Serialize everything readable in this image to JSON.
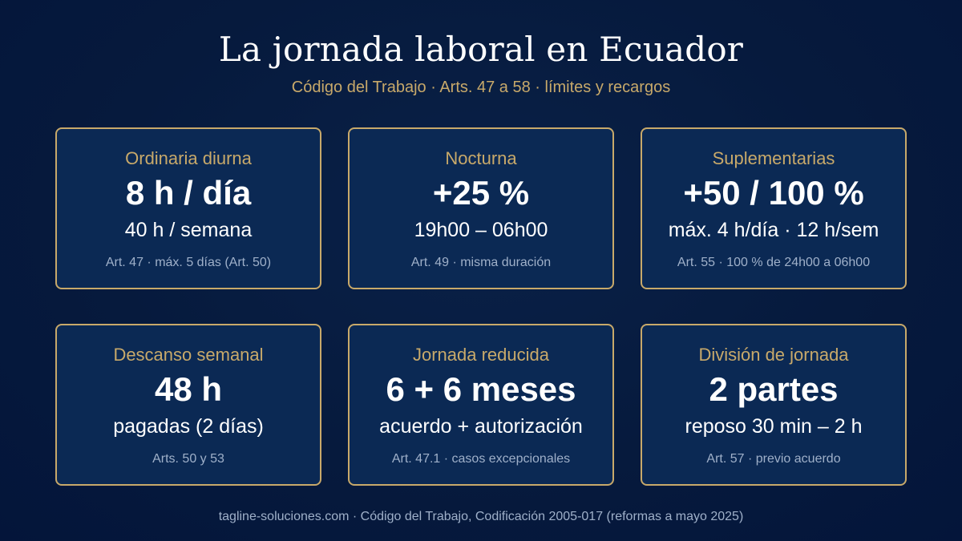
{
  "header": {
    "title": "La jornada laboral en Ecuador",
    "subtitle": "Código del Trabajo · Arts. 47 a 58 · límites y recargos"
  },
  "cards": [
    {
      "label": "Ordinaria diurna",
      "value": "8 h / día",
      "detail": "40 h / semana",
      "ref": "Art. 47 · máx. 5 días (Art. 50)"
    },
    {
      "label": "Nocturna",
      "value": "+25 %",
      "detail": "19h00 – 06h00",
      "ref": "Art. 49 · misma duración"
    },
    {
      "label": "Suplementarias",
      "value": "+50 / 100 %",
      "detail": "máx. 4 h/día · 12 h/sem",
      "ref": "Art. 55 · 100 % de 24h00 a 06h00"
    },
    {
      "label": "Descanso semanal",
      "value": "48 h",
      "detail": "pagadas (2 días)",
      "ref": "Arts. 50 y 53"
    },
    {
      "label": "Jornada reducida",
      "value": "6 + 6 meses",
      "detail": "acuerdo + autorización",
      "ref": "Art. 47.1 · casos excepcionales"
    },
    {
      "label": "División de jornada",
      "value": "2 partes",
      "detail": "reposo 30 min – 2 h",
      "ref": "Art. 57 · previo acuerdo"
    }
  ],
  "footer": {
    "text": "tagline-soluciones.com · Código del Trabajo, Codificación 2005-017 (reformas a mayo 2025)"
  },
  "colors": {
    "background": "#061a3d",
    "card_background": "#0b2954",
    "accent_gold": "#c8a96a",
    "muted_text": "#9fb0c9"
  }
}
